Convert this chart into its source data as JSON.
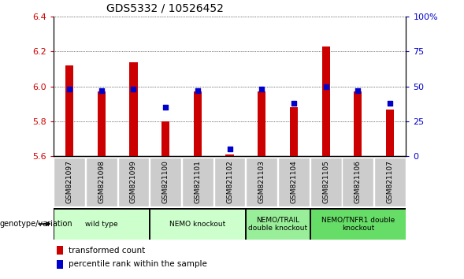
{
  "title": "GDS5332 / 10526452",
  "samples": [
    "GSM821097",
    "GSM821098",
    "GSM821099",
    "GSM821100",
    "GSM821101",
    "GSM821102",
    "GSM821103",
    "GSM821104",
    "GSM821105",
    "GSM821106",
    "GSM821107"
  ],
  "transformed_count": [
    6.12,
    5.97,
    6.14,
    5.8,
    5.97,
    5.61,
    5.97,
    5.88,
    6.23,
    5.97,
    5.87
  ],
  "percentile_rank": [
    48,
    47,
    48,
    35,
    47,
    5,
    48,
    38,
    50,
    47,
    38
  ],
  "ylim_left": [
    5.6,
    6.4
  ],
  "ylim_right": [
    0,
    100
  ],
  "yticks_left": [
    5.6,
    5.8,
    6.0,
    6.2,
    6.4
  ],
  "yticks_right": [
    0,
    25,
    50,
    75,
    100
  ],
  "bar_bottom": 5.6,
  "bar_color": "#cc0000",
  "dot_color": "#0000cc",
  "groups": [
    {
      "label": "wild type",
      "start": 0,
      "end": 2,
      "color": "#ccffcc"
    },
    {
      "label": "NEMO knockout",
      "start": 3,
      "end": 5,
      "color": "#ccffcc"
    },
    {
      "label": "NEMO/TRAIL\ndouble knockout",
      "start": 6,
      "end": 7,
      "color": "#99ee99"
    },
    {
      "label": "NEMO/TNFR1 double\nknockout",
      "start": 8,
      "end": 10,
      "color": "#66dd66"
    }
  ],
  "xlabel_genotype": "genotype/variation",
  "legend_bar_label": "transformed count",
  "legend_dot_label": "percentile rank within the sample",
  "tick_bg_color": "#cccccc",
  "group_border_color": "#000000",
  "plot_bg": "#ffffff"
}
